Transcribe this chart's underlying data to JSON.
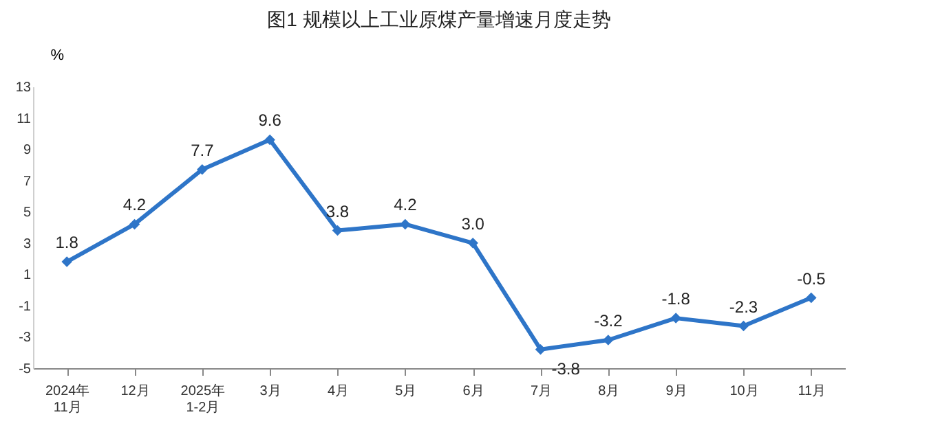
{
  "chart_data": {
    "type": "line",
    "title": "图1  规模以上工业原煤产量增速月度走势",
    "ylabel": "%",
    "categories": [
      "2024年\n11月",
      "12月",
      "2025年\n1-2月",
      "3月",
      "4月",
      "5月",
      "6月",
      "7月",
      "8月",
      "9月",
      "10月",
      "11月"
    ],
    "series": [
      {
        "color": "#2e75c8",
        "values": [
          1.8,
          4.2,
          7.7,
          9.6,
          3.8,
          4.2,
          3.0,
          -3.8,
          -3.2,
          -1.8,
          -2.3,
          -0.5
        ],
        "value_labels": [
          "1.8",
          "4.2",
          "7.7",
          "9.6",
          "3.8",
          "4.2",
          "3.0",
          "-3.8",
          "-3.2",
          "-1.8",
          "-2.3",
          "-0.5"
        ]
      }
    ],
    "ylim": [
      -5,
      13
    ],
    "yticks": [
      -5,
      -3,
      -1,
      1,
      3,
      5,
      7,
      9,
      11,
      13
    ],
    "grid": false,
    "legend": false,
    "marker": "diamond",
    "line_style": "solid",
    "data_labels": true
  }
}
